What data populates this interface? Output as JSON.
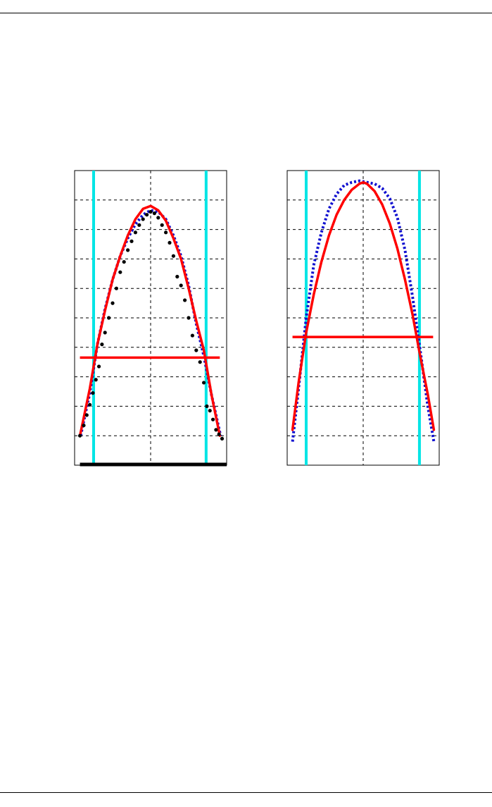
{
  "chart_data": [
    {
      "type": "line",
      "title": "",
      "xlabel": "",
      "ylabel": "",
      "xlim": [
        -1.0,
        1.0
      ],
      "ylim": [
        0.0,
        1.0
      ],
      "grid": true,
      "x_gridlines": [
        0.0
      ],
      "y_gridlines": [
        0.1,
        0.2,
        0.3,
        0.4,
        0.5,
        0.6,
        0.7,
        0.8,
        0.9
      ],
      "vertical_markers": {
        "x": [
          -0.75,
          0.73
        ],
        "color": "#00e5e5"
      },
      "threshold_line": {
        "y": 0.365,
        "x_range": [
          -0.93,
          0.91
        ],
        "color": "#ff0000"
      },
      "baseline_bar": {
        "x_range": [
          -0.93,
          1.0
        ],
        "color": "#000000"
      },
      "series": [
        {
          "style": "dotted",
          "color": "#1010d0",
          "x": [
            -0.92,
            -0.8,
            -0.7,
            -0.6,
            -0.5,
            -0.4,
            -0.3,
            -0.2,
            -0.1,
            0.0,
            0.1,
            0.2,
            0.3,
            0.4,
            0.5,
            0.6,
            0.7,
            0.8,
            0.92
          ],
          "y": [
            0.1,
            0.245,
            0.41,
            0.53,
            0.63,
            0.71,
            0.77,
            0.818,
            0.85,
            0.865,
            0.86,
            0.835,
            0.78,
            0.71,
            0.61,
            0.48,
            0.37,
            0.24,
            0.1
          ]
        },
        {
          "style": "solid",
          "color": "#ff0000",
          "x": [
            -0.93,
            -0.8,
            -0.7,
            -0.6,
            -0.5,
            -0.4,
            -0.3,
            -0.2,
            -0.1,
            0.0,
            0.1,
            0.2,
            0.3,
            0.4,
            0.5,
            0.6,
            0.7,
            0.8,
            0.91
          ],
          "y": [
            0.1,
            0.26,
            0.41,
            0.525,
            0.63,
            0.71,
            0.78,
            0.835,
            0.87,
            0.88,
            0.865,
            0.83,
            0.77,
            0.7,
            0.6,
            0.49,
            0.39,
            0.24,
            0.1
          ]
        },
        {
          "style": "markers",
          "color": "#000000",
          "x": [
            -0.93,
            -0.88,
            -0.84,
            -0.8,
            -0.76,
            -0.72,
            -0.68,
            -0.64,
            -0.6,
            -0.55,
            -0.5,
            -0.45,
            -0.4,
            -0.35,
            -0.3,
            -0.25,
            -0.2,
            -0.15,
            -0.1,
            -0.05,
            0.0,
            0.05,
            0.1,
            0.15,
            0.2,
            0.25,
            0.3,
            0.35,
            0.4,
            0.45,
            0.5,
            0.55,
            0.6,
            0.65,
            0.7,
            0.74,
            0.78,
            0.82,
            0.86,
            0.9,
            0.94
          ],
          "y": [
            0.1,
            0.135,
            0.17,
            0.205,
            0.245,
            0.29,
            0.335,
            0.41,
            0.45,
            0.5,
            0.55,
            0.6,
            0.655,
            0.69,
            0.73,
            0.76,
            0.79,
            0.815,
            0.835,
            0.85,
            0.86,
            0.855,
            0.84,
            0.815,
            0.79,
            0.755,
            0.71,
            0.64,
            0.61,
            0.56,
            0.5,
            0.44,
            0.39,
            0.35,
            0.28,
            0.2,
            0.185,
            0.155,
            0.12,
            0.105,
            0.09
          ]
        }
      ]
    },
    {
      "type": "line",
      "title": "",
      "xlabel": "",
      "ylabel": "",
      "xlim": [
        -1.0,
        1.0
      ],
      "ylim": [
        0.0,
        1.0
      ],
      "grid": true,
      "x_gridlines": [
        0.0
      ],
      "y_gridlines": [
        0.1,
        0.2,
        0.3,
        0.4,
        0.5,
        0.6,
        0.7,
        0.8,
        0.9
      ],
      "vertical_markers": {
        "x": [
          -0.75,
          0.74
        ],
        "color": "#00e5e5"
      },
      "threshold_line": {
        "y": 0.435,
        "x_range": [
          -0.93,
          0.92
        ],
        "color": "#ff0000"
      },
      "series": [
        {
          "style": "dotted",
          "color": "#1010d0",
          "x": [
            -0.93,
            -0.85,
            -0.75,
            -0.65,
            -0.55,
            -0.45,
            -0.35,
            -0.25,
            -0.15,
            -0.05,
            0.05,
            0.15,
            0.25,
            0.35,
            0.45,
            0.55,
            0.65,
            0.75,
            0.85,
            0.93
          ],
          "y": [
            0.08,
            0.26,
            0.5,
            0.68,
            0.79,
            0.87,
            0.92,
            0.95,
            0.96,
            0.965,
            0.96,
            0.955,
            0.94,
            0.905,
            0.84,
            0.73,
            0.57,
            0.39,
            0.2,
            0.08
          ]
        },
        {
          "style": "solid",
          "color": "#ff0000",
          "x": [
            -0.93,
            -0.85,
            -0.75,
            -0.65,
            -0.55,
            -0.45,
            -0.35,
            -0.25,
            -0.15,
            -0.05,
            0.0,
            0.05,
            0.15,
            0.25,
            0.35,
            0.45,
            0.55,
            0.65,
            0.75,
            0.85,
            0.93
          ],
          "y": [
            0.12,
            0.28,
            0.45,
            0.58,
            0.69,
            0.78,
            0.85,
            0.9,
            0.935,
            0.955,
            0.96,
            0.955,
            0.93,
            0.885,
            0.82,
            0.735,
            0.63,
            0.51,
            0.37,
            0.24,
            0.12
          ]
        }
      ]
    }
  ]
}
